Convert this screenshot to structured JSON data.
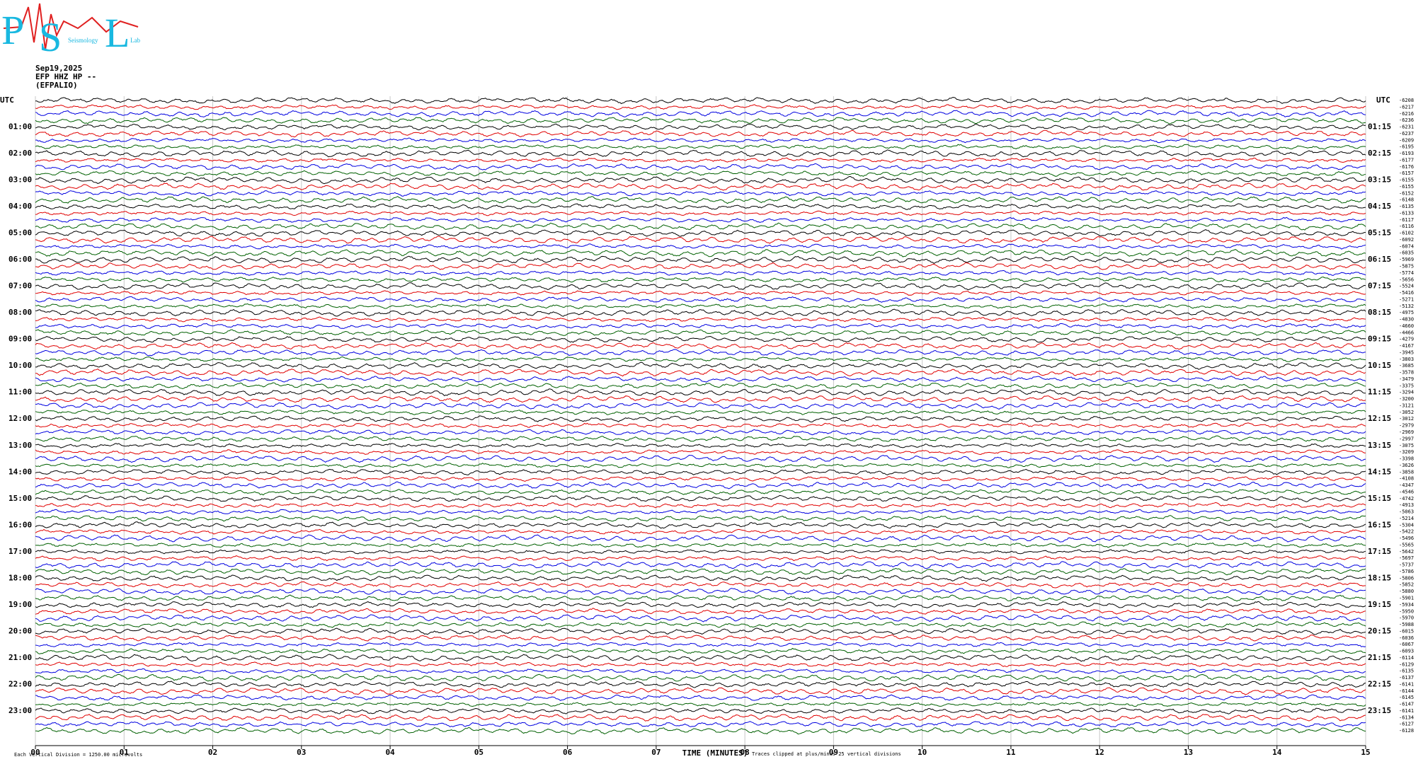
{
  "chart_data": {
    "type": "helicorder",
    "logo": {
      "letters": [
        "P",
        "S",
        "L"
      ],
      "words": [
        "Seismology",
        "Lab"
      ]
    },
    "title": [
      "Sep19,2025",
      "EFP HHZ HP --",
      "(EFPALIO)"
    ],
    "left_header": "UTC",
    "right_header": "UTC",
    "left_labels": [
      "01:00",
      "02:00",
      "03:00",
      "04:00",
      "05:00",
      "06:00",
      "07:00",
      "08:00",
      "09:00",
      "10:00",
      "11:00",
      "12:00",
      "13:00",
      "14:00",
      "15:00",
      "16:00",
      "17:00",
      "18:00",
      "19:00",
      "20:00",
      "21:00",
      "22:00",
      "23:00"
    ],
    "right_labels": [
      "01:15",
      "02:15",
      "03:15",
      "04:15",
      "05:15",
      "06:15",
      "07:15",
      "08:15",
      "09:15",
      "10:15",
      "11:15",
      "12:15",
      "13:15",
      "14:15",
      "15:15",
      "16:15",
      "17:15",
      "18:15",
      "19:15",
      "20:15",
      "21:15",
      "22:15",
      "23:15"
    ],
    "offsets": [
      -6208,
      -6217,
      -6216,
      -6236,
      -6231,
      -6237,
      -6209,
      -6195,
      -6193,
      -6177,
      -6176,
      -6157,
      -6155,
      -6155,
      -6152,
      -6148,
      -6135,
      -6133,
      -6117,
      -6116,
      -6102,
      -6092,
      -6074,
      -6035,
      -5969,
      -5875,
      -5774,
      -5656,
      -5524,
      -5416,
      -5271,
      -5132,
      -4975,
      -4830,
      -4660,
      -4466,
      -4279,
      -4167,
      -3945,
      -3803,
      -3685,
      -3578,
      -3479,
      -3375,
      -3294,
      -3200,
      -3121,
      -3052,
      -3012,
      -2979,
      -2969,
      -2997,
      -3075,
      -3209,
      -3398,
      -3626,
      -3858,
      -4108,
      -4347,
      -4546,
      -4742,
      -4913,
      -5063,
      -5214,
      -5304,
      -5422,
      -5496,
      -5565,
      -5642,
      -5697,
      -5737,
      -5786,
      -5806,
      -5852,
      -5880,
      -5901,
      -5934,
      -5950,
      -5970,
      -5988,
      -6015,
      -6036,
      -6067,
      -6093,
      -6114,
      -6129,
      -6135,
      -6137,
      -6141,
      -6144,
      -6145,
      -6147,
      -6141,
      -6134,
      -6127,
      -6128
    ],
    "trace_colors": [
      "#000000",
      "#e00000",
      "#0000e0",
      "#006000"
    ],
    "xlim": [
      0,
      15
    ],
    "xticks": [
      {
        "value": 0,
        "label": "00"
      },
      {
        "value": 1,
        "label": "01"
      },
      {
        "value": 2,
        "label": "02"
      },
      {
        "value": 3,
        "label": "03"
      },
      {
        "value": 4,
        "label": "04"
      },
      {
        "value": 5,
        "label": "05"
      },
      {
        "value": 6,
        "label": "06"
      },
      {
        "value": 7,
        "label": "07"
      },
      {
        "value": 8,
        "label": "08"
      },
      {
        "value": 9,
        "label": "09"
      },
      {
        "value": 10,
        "label": "10"
      },
      {
        "value": 11,
        "label": "11"
      },
      {
        "value": 12,
        "label": "12"
      },
      {
        "value": 13,
        "label": "13"
      },
      {
        "value": 14,
        "label": "14"
      },
      {
        "value": 15,
        "label": "15"
      }
    ],
    "xlabel": "TIME (MINUTES)",
    "scale_note": "Each Vertical Division = 1250.00 microvolts",
    "clip_note": "Traces clipped at plus/minus 25 vertical divisions",
    "grid": true
  }
}
